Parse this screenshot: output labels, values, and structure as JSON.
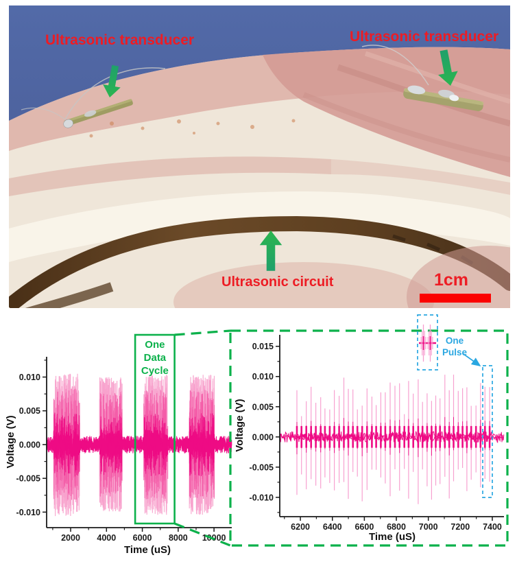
{
  "photo": {
    "labels": {
      "transducer_left": "Ultrasonic transducer",
      "transducer_right": "Ultrasonic transducer",
      "circuit": "Ultrasonic circuit",
      "scalebar": "1cm"
    },
    "colors": {
      "background_blue": "#4d63a0",
      "label_red": "#ed1c24",
      "arrow_green": "#21ad5d",
      "scalebar_red": "#fb0200"
    }
  },
  "chart_data": [
    {
      "id": "overview",
      "type": "line",
      "title": "",
      "xlabel": "Time (uS)",
      "ylabel": "Voltage (V)",
      "xlim": [
        660,
        10990
      ],
      "ylim": [
        -0.0123,
        0.013
      ],
      "xticks": [
        "2000",
        "4000",
        "6000",
        "8000",
        "10000"
      ],
      "yticks": [
        "0.010",
        "0.005",
        "0.000",
        "-0.005",
        "-0.010"
      ],
      "x_minor_step": 1000,
      "grid": false,
      "line_color": "#ee0b84",
      "burst_light_color": "#f8a2cd",
      "burst_mid_color": "#f45ca8",
      "noise_amp_v": 0.0013,
      "bursts": [
        {
          "start_us": 1050,
          "end_us": 2500,
          "amp_v": 0.0106
        },
        {
          "start_us": 3620,
          "end_us": 4880,
          "amp_v": 0.01
        },
        {
          "start_us": 6080,
          "end_us": 7420,
          "amp_v": 0.0104
        },
        {
          "start_us": 8620,
          "end_us": 10020,
          "amp_v": 0.0104
        }
      ],
      "annotation": {
        "label": "One Data Cycle",
        "lines": [
          "One",
          "Data",
          "Cycle"
        ],
        "x_start_us": 5600,
        "x_end_us": 7800,
        "color": "#0cb14b"
      }
    },
    {
      "id": "zoom",
      "type": "line",
      "title": "",
      "xlabel": "Time (uS)",
      "ylabel": "Voltage (V)",
      "xlim": [
        6071,
        7473
      ],
      "ylim": [
        -0.0132,
        0.0169
      ],
      "xticks": [
        "6200",
        "6400",
        "6600",
        "6800",
        "7000",
        "7200",
        "7400"
      ],
      "yticks": [
        "0.015",
        "0.010",
        "0.005",
        "0.000",
        "-0.005",
        "-0.010"
      ],
      "x_minor_step": 100,
      "grid": false,
      "line_color": "#ee0b84",
      "pulse_light_color": "#f79cce",
      "noise_amp_v": 0.0009,
      "pulses": {
        "start_us": 6178,
        "end_us": 7395,
        "spacing_us": 28.5,
        "amp_min_v": 0.0042,
        "amp_max_v": 0.0106,
        "neg_min_v": 0.005,
        "neg_max_v": 0.0112
      },
      "annotations": {
        "one_pulse_label": "One Pulse",
        "one_pulse_lines": [
          "One",
          "Pulse"
        ],
        "pulse_box_time_us": 7370,
        "blue": "#2aa7e1"
      }
    }
  ],
  "zoom_link": {
    "frame_color": "#0cb14b",
    "style": "dashed"
  }
}
